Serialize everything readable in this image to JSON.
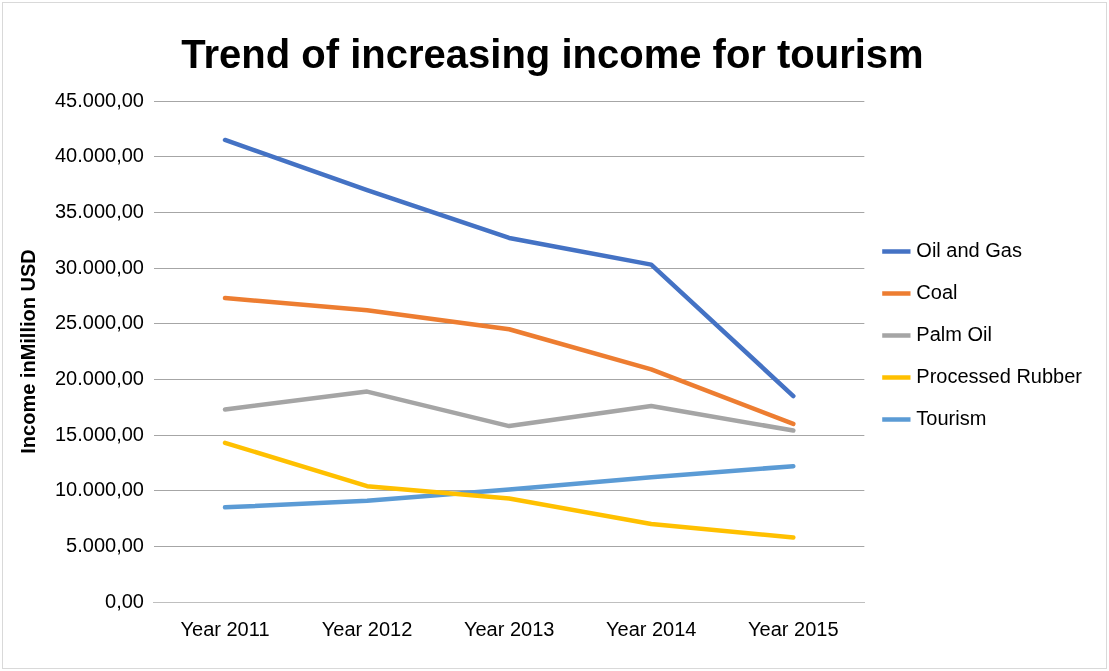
{
  "chart_data": {
    "type": "line",
    "title": "Trend of increasing income for tourism",
    "ylabel": "Income inMillion USD",
    "categories": [
      "Year 2011",
      "Year 2012",
      "Year 2013",
      "Year 2014",
      "Year 2015"
    ],
    "series": [
      {
        "name": "Oil and Gas",
        "color": "#4472c4",
        "values": [
          41500,
          37000,
          32700,
          30300,
          18500
        ]
      },
      {
        "name": "Coal",
        "color": "#ed7d31",
        "values": [
          27300,
          26200,
          24500,
          20900,
          16000
        ]
      },
      {
        "name": "Palm Oil",
        "color": "#a5a5a5",
        "values": [
          17300,
          18900,
          15800,
          17600,
          15400
        ]
      },
      {
        "name": "Processed Rubber",
        "color": "#ffc000",
        "values": [
          14300,
          10400,
          9300,
          7000,
          5800
        ]
      },
      {
        "name": "Tourism",
        "color": "#5b9bd5",
        "values": [
          8500,
          9100,
          10100,
          11200,
          12200
        ]
      }
    ],
    "ylim": [
      0,
      45000
    ],
    "yticks": [
      {
        "value": 0,
        "label": "0,00"
      },
      {
        "value": 5000,
        "label": "5.000,00"
      },
      {
        "value": 10000,
        "label": "10.000,00"
      },
      {
        "value": 15000,
        "label": "15.000,00"
      },
      {
        "value": 20000,
        "label": "20.000,00"
      },
      {
        "value": 25000,
        "label": "25.000,00"
      },
      {
        "value": 30000,
        "label": "30.000,00"
      },
      {
        "value": 35000,
        "label": "35.000,00"
      },
      {
        "value": 40000,
        "label": "40.000,00"
      },
      {
        "value": 45000,
        "label": "45.000,00"
      }
    ],
    "grid": "y",
    "legend": "right",
    "marker": "none",
    "line_style": "solid"
  }
}
